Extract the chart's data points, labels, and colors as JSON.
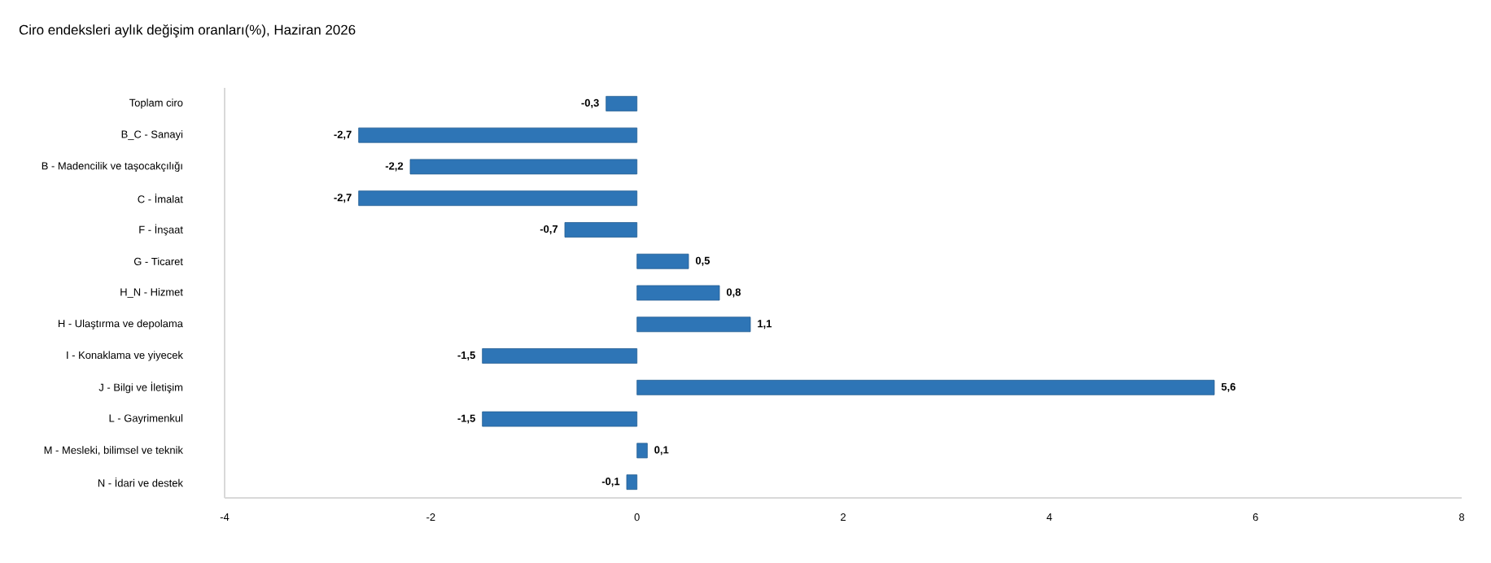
{
  "chart_data": {
    "type": "bar",
    "orientation": "horizontal",
    "title": "Ciro endeksleri aylık değişim oranları(%), Haziran 2026",
    "categories": [
      "Toplam ciro",
      "B_C - Sanayi",
      "B - Madencilik ve taşocakçılığı",
      "C - İmalat",
      "F - İnşaat",
      "G - Ticaret",
      "H_N - Hizmet",
      "H - Ulaştırma ve depolama",
      "I - Konaklama ve yiyecek",
      "J - Bilgi ve İletişim",
      "L - Gayrimenkul",
      "M - Mesleki, bilimsel ve teknik",
      "N - İdari ve destek"
    ],
    "values": [
      -0.3,
      -2.7,
      -2.2,
      -2.7,
      -0.7,
      0.5,
      0.8,
      1.1,
      -1.5,
      5.6,
      -1.5,
      0.1,
      -0.1
    ],
    "value_labels": [
      "-0,3",
      "-2,7",
      "-2,2",
      "-2,7",
      "-0,7",
      "0,5",
      "0,8",
      "1,1",
      "-1,5",
      "5,6",
      "-1,5",
      "0,1",
      "-0,1"
    ],
    "color": "#2e75b6",
    "xlim": [
      -4,
      8
    ],
    "xticks": [
      -4,
      -2,
      0,
      2,
      4,
      6,
      8
    ],
    "grid": false
  }
}
